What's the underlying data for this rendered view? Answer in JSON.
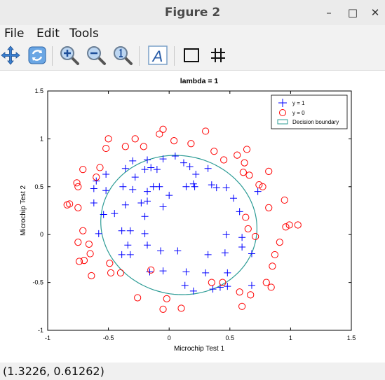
{
  "window": {
    "title": "Figure 2",
    "minimize": "–",
    "maximize": "□",
    "close": "✕"
  },
  "menu": {
    "file": "File",
    "edit": "Edit",
    "tools": "Tools"
  },
  "toolbar": {
    "icons": [
      "pan-icon",
      "rotate-icon",
      "zoom-in-icon",
      "zoom-out-icon",
      "zoom-reset-icon",
      "text-icon",
      "box-icon",
      "grid-icon"
    ],
    "text_glyph": "A"
  },
  "status": {
    "coords": "(1.3226, 0.61262)"
  },
  "chart_data": {
    "type": "scatter",
    "title": "lambda = 1",
    "xlabel": "Microchip Test 1",
    "ylabel": "Microchip Test 2",
    "xlim": [
      -1,
      1.5
    ],
    "ylim": [
      -1,
      1.5
    ],
    "xticks": [
      -1,
      -0.5,
      0,
      0.5,
      1,
      1.5
    ],
    "xtick_labels": [
      "-1",
      "-0.5",
      "0",
      "0.5",
      "1",
      "1.5"
    ],
    "yticks": [
      -1,
      -0.5,
      0,
      0.5,
      1,
      1.5
    ],
    "ytick_labels": [
      "-1",
      "-0.5",
      "0",
      "0.5",
      "1",
      "1.5"
    ],
    "grid": false,
    "legend_position": "top-right",
    "legend": [
      "y = 1",
      "y = 0",
      "Decision boundary"
    ],
    "colors": {
      "positive": "#0000ff",
      "negative": "#ff0000",
      "boundary": "#2e9c96"
    },
    "series": [
      {
        "name": "y = 1",
        "marker": "+",
        "points": [
          [
            -0.18,
            0.78
          ],
          [
            -0.3,
            0.77
          ],
          [
            -0.05,
            0.79
          ],
          [
            0.05,
            0.82
          ],
          [
            0.12,
            0.75
          ],
          [
            0.17,
            0.71
          ],
          [
            0.22,
            0.63
          ],
          [
            0.32,
            0.69
          ],
          [
            -0.2,
            0.68
          ],
          [
            -0.15,
            0.7
          ],
          [
            -0.1,
            0.68
          ],
          [
            -0.28,
            0.6
          ],
          [
            -0.36,
            0.69
          ],
          [
            -0.52,
            0.63
          ],
          [
            -0.6,
            0.56
          ],
          [
            -0.62,
            0.48
          ],
          [
            -0.52,
            0.46
          ],
          [
            -0.38,
            0.5
          ],
          [
            -0.3,
            0.47
          ],
          [
            -0.18,
            0.45
          ],
          [
            -0.13,
            0.5
          ],
          [
            -0.08,
            0.5
          ],
          [
            0.0,
            0.41
          ],
          [
            0.14,
            0.5
          ],
          [
            0.2,
            0.53
          ],
          [
            0.21,
            0.5
          ],
          [
            0.35,
            0.52
          ],
          [
            0.39,
            0.49
          ],
          [
            0.47,
            0.49
          ],
          [
            0.53,
            0.38
          ],
          [
            -0.62,
            0.33
          ],
          [
            -0.54,
            0.21
          ],
          [
            -0.45,
            0.22
          ],
          [
            -0.36,
            0.31
          ],
          [
            -0.23,
            0.33
          ],
          [
            -0.18,
            0.35
          ],
          [
            -0.05,
            0.29
          ],
          [
            -0.2,
            0.19
          ],
          [
            -0.58,
            0.01
          ],
          [
            -0.39,
            0.04
          ],
          [
            -0.32,
            0.04
          ],
          [
            -0.2,
            0.01
          ],
          [
            -0.34,
            -0.11
          ],
          [
            -0.18,
            -0.11
          ],
          [
            -0.32,
            -0.21
          ],
          [
            -0.39,
            -0.21
          ],
          [
            -0.07,
            -0.17
          ],
          [
            0.07,
            -0.17
          ],
          [
            0.32,
            -0.21
          ],
          [
            0.46,
            -0.19
          ],
          [
            0.6,
            -0.03
          ],
          [
            0.6,
            -0.13
          ],
          [
            0.68,
            -0.2
          ],
          [
            0.47,
            0.0
          ],
          [
            0.58,
            0.24
          ],
          [
            -0.16,
            -0.39
          ],
          [
            -0.05,
            -0.38
          ],
          [
            0.14,
            -0.39
          ],
          [
            0.3,
            -0.4
          ],
          [
            0.48,
            -0.4
          ],
          [
            0.13,
            -0.53
          ],
          [
            0.2,
            -0.59
          ],
          [
            0.36,
            -0.57
          ],
          [
            0.42,
            -0.55
          ],
          [
            0.48,
            -0.54
          ],
          [
            0.68,
            -0.53
          ],
          [
            0.73,
            0.45
          ]
        ]
      },
      {
        "name": "y = 0",
        "marker": "o",
        "points": [
          [
            -0.5,
            1.0
          ],
          [
            -0.52,
            0.9
          ],
          [
            -0.36,
            0.92
          ],
          [
            -0.28,
            1.0
          ],
          [
            -0.21,
            0.92
          ],
          [
            -0.08,
            1.05
          ],
          [
            -0.05,
            1.1
          ],
          [
            0.04,
            0.98
          ],
          [
            0.18,
            0.95
          ],
          [
            0.3,
            1.08
          ],
          [
            0.37,
            0.87
          ],
          [
            0.56,
            0.83
          ],
          [
            0.62,
            0.75
          ],
          [
            0.64,
            0.89
          ],
          [
            0.45,
            0.78
          ],
          [
            0.61,
            0.65
          ],
          [
            0.66,
            0.62
          ],
          [
            0.74,
            0.52
          ],
          [
            0.77,
            0.5
          ],
          [
            0.82,
            0.66
          ],
          [
            -0.57,
            0.7
          ],
          [
            -0.71,
            0.68
          ],
          [
            -0.6,
            0.6
          ],
          [
            -0.76,
            0.54
          ],
          [
            -0.75,
            0.5
          ],
          [
            -0.82,
            0.32
          ],
          [
            -0.75,
            0.28
          ],
          [
            -0.84,
            0.31
          ],
          [
            -0.71,
            0.04
          ],
          [
            -0.75,
            -0.08
          ],
          [
            -0.66,
            -0.1
          ],
          [
            -0.65,
            -0.2
          ],
          [
            -0.74,
            -0.28
          ],
          [
            -0.7,
            -0.27
          ],
          [
            -0.64,
            -0.43
          ],
          [
            -0.49,
            -0.3
          ],
          [
            -0.48,
            -0.4
          ],
          [
            -0.4,
            -0.4
          ],
          [
            -0.15,
            -0.37
          ],
          [
            -0.26,
            -0.66
          ],
          [
            -0.02,
            -0.67
          ],
          [
            -0.05,
            -0.78
          ],
          [
            0.1,
            -0.77
          ],
          [
            0.35,
            -0.5
          ],
          [
            0.44,
            -0.5
          ],
          [
            0.58,
            -0.6
          ],
          [
            0.6,
            -0.75
          ],
          [
            0.67,
            -0.63
          ],
          [
            0.8,
            -0.5
          ],
          [
            0.84,
            -0.55
          ],
          [
            0.85,
            -0.33
          ],
          [
            0.87,
            -0.21
          ],
          [
            0.91,
            -0.08
          ],
          [
            0.96,
            0.08
          ],
          [
            0.99,
            0.1
          ],
          [
            1.06,
            0.1
          ],
          [
            0.95,
            0.36
          ],
          [
            0.82,
            0.28
          ],
          [
            0.63,
            0.18
          ],
          [
            0.65,
            0.06
          ],
          [
            0.71,
            -0.02
          ]
        ]
      }
    ],
    "decision_boundary": {
      "center": [
        0.08,
        0.1
      ],
      "radius_x": 0.64,
      "radius_y": 0.73,
      "tilt_deg": 10
    }
  }
}
